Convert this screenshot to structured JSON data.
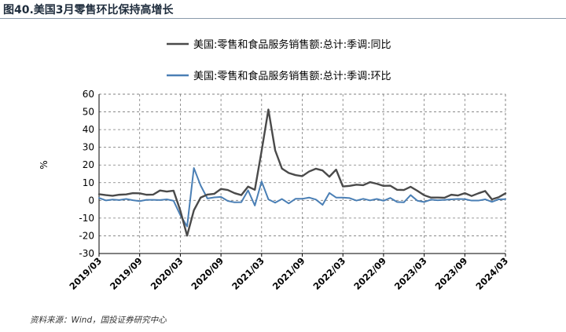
{
  "figure": {
    "title": "图40.美国3月零售环比保持高增长",
    "source": "资料来源：Wind，国投证券研究中心"
  },
  "colors": {
    "yoy": "#4a4a4a",
    "mom": "#4a7fb5",
    "grid": "#7a7a7a",
    "axis": "#000000"
  },
  "chart_data": {
    "type": "line",
    "ylabel": "%",
    "ylim": [
      -30,
      60
    ],
    "yticks": [
      -30,
      -20,
      -10,
      0,
      10,
      20,
      30,
      40,
      50,
      60
    ],
    "xticks": [
      "2019/03",
      "2019/09",
      "2020/03",
      "2020/09",
      "2021/03",
      "2021/09",
      "2022/03",
      "2022/09",
      "2023/03",
      "2023/09",
      "2024/03"
    ],
    "grid": true,
    "legend_position": "top",
    "x": [
      "2019/03",
      "2019/04",
      "2019/05",
      "2019/06",
      "2019/07",
      "2019/08",
      "2019/09",
      "2019/10",
      "2019/11",
      "2019/12",
      "2020/01",
      "2020/02",
      "2020/03",
      "2020/04",
      "2020/05",
      "2020/06",
      "2020/07",
      "2020/08",
      "2020/09",
      "2020/10",
      "2020/11",
      "2020/12",
      "2021/01",
      "2021/02",
      "2021/03",
      "2021/04",
      "2021/05",
      "2021/06",
      "2021/07",
      "2021/08",
      "2021/09",
      "2021/10",
      "2021/11",
      "2021/12",
      "2022/01",
      "2022/02",
      "2022/03",
      "2022/04",
      "2022/05",
      "2022/06",
      "2022/07",
      "2022/08",
      "2022/09",
      "2022/10",
      "2022/11",
      "2022/12",
      "2023/01",
      "2023/02",
      "2023/03",
      "2023/04",
      "2023/05",
      "2023/06",
      "2023/07",
      "2023/08",
      "2023/09",
      "2023/10",
      "2023/11",
      "2023/12",
      "2024/01",
      "2024/02",
      "2024/03"
    ],
    "series": [
      {
        "name": "美国:零售和食品服务销售额:总计:季调:同比",
        "values": [
          3.5,
          3.0,
          2.6,
          3.2,
          3.4,
          4.1,
          4.0,
          3.2,
          3.3,
          5.6,
          5.0,
          5.5,
          -5.8,
          -19.9,
          -5.6,
          1.6,
          3.3,
          3.7,
          6.5,
          5.9,
          4.1,
          3.0,
          7.8,
          6.0,
          28.0,
          51.3,
          28.3,
          18.0,
          15.5,
          14.3,
          13.7,
          16.3,
          17.9,
          16.9,
          13.4,
          17.4,
          7.9,
          8.2,
          8.9,
          8.6,
          10.3,
          9.4,
          8.2,
          8.3,
          6.0,
          5.9,
          7.7,
          5.4,
          2.9,
          1.6,
          1.6,
          1.5,
          3.2,
          2.8,
          4.1,
          2.5,
          4.0,
          5.3,
          0.6,
          1.8,
          4.0
        ]
      },
      {
        "name": "美国:零售和食品服务销售额:总计:季调:环比",
        "values": [
          1.4,
          0.0,
          0.5,
          0.2,
          0.8,
          0.1,
          -0.4,
          0.3,
          0.3,
          0.2,
          0.6,
          -0.2,
          -8.3,
          -14.7,
          18.3,
          8.4,
          1.1,
          1.7,
          2.0,
          -0.3,
          -1.1,
          -1.0,
          5.7,
          -2.9,
          10.7,
          0.6,
          -1.3,
          0.8,
          -1.7,
          0.9,
          0.9,
          1.6,
          0.5,
          -2.5,
          4.2,
          1.6,
          1.6,
          1.3,
          -0.1,
          0.9,
          0.0,
          0.8,
          -0.2,
          1.4,
          -0.9,
          -1.1,
          3.0,
          -0.2,
          -0.9,
          0.4,
          0.1,
          0.3,
          0.6,
          0.8,
          0.7,
          -0.1,
          -0.1,
          0.6,
          -0.8,
          0.6,
          0.7
        ]
      }
    ]
  }
}
